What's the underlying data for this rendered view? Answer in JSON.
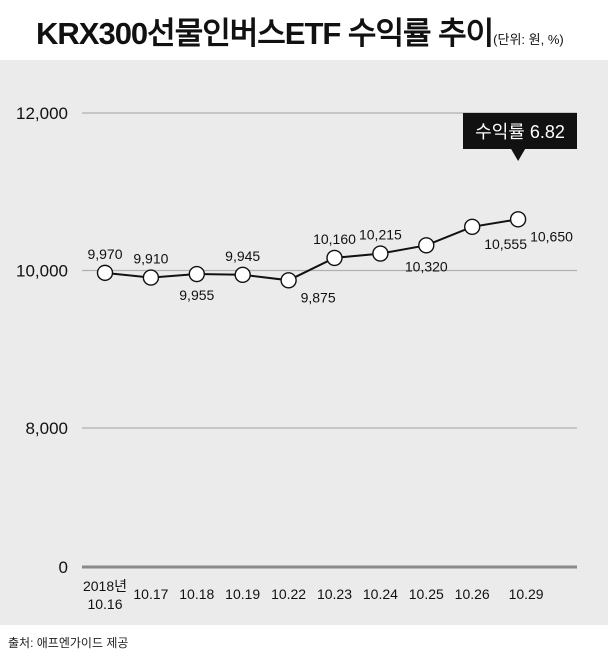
{
  "header": {
    "title": "KRX300선물인버스ETF 수익률 추이",
    "unit": "(단위: 원, %)"
  },
  "source": "출처: 애프엔가이드 제공",
  "callout": {
    "label": "수익률 6.82"
  },
  "colors": {
    "background": "#ebebeb",
    "line": "#111111",
    "marker_fill": "#ffffff",
    "callout_bg": "#111111"
  },
  "chart_data": {
    "type": "line",
    "title": "KRX300선물인버스ETF 수익률 추이",
    "categories": [
      [
        "2018년",
        "10.16"
      ],
      [
        "10.17"
      ],
      [
        "10.18"
      ],
      [
        "10.19"
      ],
      [
        "10.22"
      ],
      [
        "10.23"
      ],
      [
        "10.24"
      ],
      [
        "10.25"
      ],
      [
        "10.26"
      ],
      [
        "10.29"
      ]
    ],
    "values": [
      9970,
      9910,
      9955,
      9945,
      9875,
      10160,
      10215,
      10320,
      10555,
      10650
    ],
    "value_labels": [
      "9,970",
      "9,910",
      "9,955",
      "9,945",
      "9,875",
      "10,160",
      "10,215",
      "10,320",
      "10,555",
      "10,650"
    ],
    "y_ticks": [
      {
        "value": "0",
        "label": "0"
      },
      {
        "value": 8000,
        "label": "8,000"
      },
      {
        "value": 10000,
        "label": "10,000"
      },
      {
        "value": 12000,
        "label": "12,000"
      }
    ],
    "y_axis_broken": true,
    "grid": true
  }
}
